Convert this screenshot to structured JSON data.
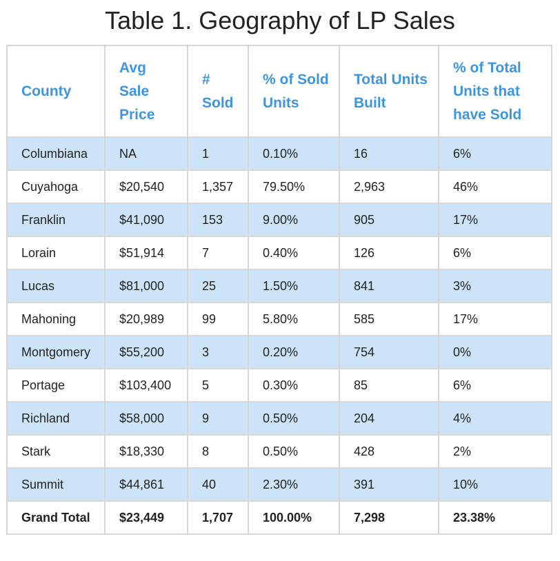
{
  "header": {
    "title": "Table 1. Geography of LP Sales"
  },
  "table": {
    "columns": [
      "County",
      "Avg Sale Price",
      "# Sold",
      "% of Sold Units",
      "Total Units Built",
      "% of Total Units that have Sold"
    ],
    "rows": [
      [
        "Columbiana",
        "NA",
        "1",
        "0.10%",
        "16",
        "6%"
      ],
      [
        "Cuyahoga",
        "$20,540",
        "1,357",
        "79.50%",
        "2,963",
        "46%"
      ],
      [
        "Franklin",
        "$41,090",
        "153",
        "9.00%",
        "905",
        "17%"
      ],
      [
        "Lorain",
        "$51,914",
        "7",
        "0.40%",
        "126",
        "6%"
      ],
      [
        "Lucas",
        "$81,000",
        "25",
        "1.50%",
        "841",
        "3%"
      ],
      [
        "Mahoning",
        "$20,989",
        "99",
        "5.80%",
        "585",
        "17%"
      ],
      [
        "Montgomery",
        "$55,200",
        "3",
        "0.20%",
        "754",
        "0%"
      ],
      [
        "Portage",
        "$103,400",
        "5",
        "0.30%",
        "85",
        "6%"
      ],
      [
        "Richland",
        "$58,000",
        "9",
        "0.50%",
        "204",
        "4%"
      ],
      [
        "Stark",
        "$18,330",
        "8",
        "0.50%",
        "428",
        "2%"
      ],
      [
        "Summit",
        "$44,861",
        "40",
        "2.30%",
        "391",
        "10%"
      ]
    ],
    "total": [
      "Grand Total",
      "$23,449",
      "1,707",
      "100.00%",
      "7,298",
      "23.38%"
    ]
  }
}
